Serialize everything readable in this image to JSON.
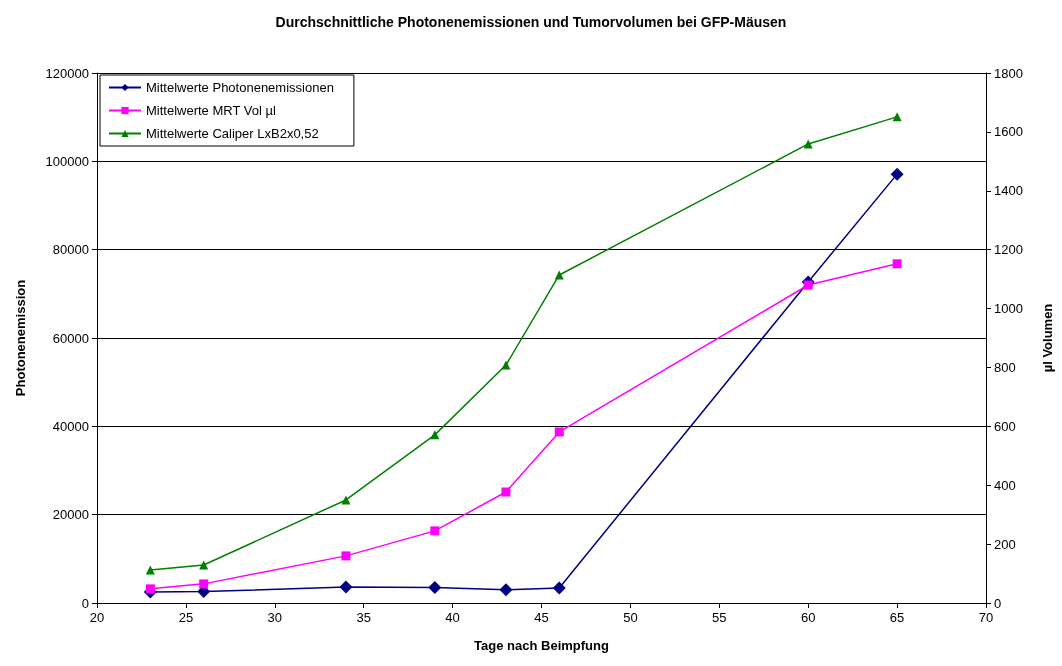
{
  "chart_data": {
    "type": "line",
    "title": "Durchschnittliche Photonenemissionen und Tumorvolumen bei GFP-Mäusen",
    "xlabel": "Tage nach Beimpfung",
    "ylabel": "Photonenemission",
    "y2label": "µl Volumen",
    "x": [
      23,
      26,
      34,
      39,
      43,
      46,
      60,
      65
    ],
    "series": [
      {
        "name": "Mittelwerte Photonenemissionen",
        "color": "#000080",
        "marker": "diamond",
        "values": [
          2500,
          2600,
          3600,
          3500,
          3000,
          3400,
          72700,
          97100
        ]
      },
      {
        "name": "Mittelwerte MRT Vol µl",
        "color": "#ff00ff",
        "marker": "square",
        "axis": "y2",
        "values": [
          48,
          65,
          160,
          245,
          377,
          581,
          1080,
          1152
        ]
      },
      {
        "name": "Mittelwerte Caliper LxB2x0,52",
        "color": "#008000",
        "marker": "triangle",
        "axis": "y2",
        "values": [
          112,
          129,
          350,
          571,
          808,
          1114,
          1559,
          1651
        ]
      }
    ],
    "xlim": [
      20,
      70
    ],
    "xticks": [
      20,
      25,
      30,
      35,
      40,
      45,
      50,
      55,
      60,
      65,
      70
    ],
    "ylim": [
      0,
      120000
    ],
    "yticks": [
      0,
      20000,
      40000,
      60000,
      80000,
      100000,
      120000
    ],
    "y2lim": [
      0,
      1800
    ],
    "y2ticks": [
      0,
      200,
      400,
      600,
      800,
      1000,
      1200,
      1400,
      1600,
      1800
    ],
    "grid": "y",
    "legend": "top left",
    "line_style": "solid"
  }
}
